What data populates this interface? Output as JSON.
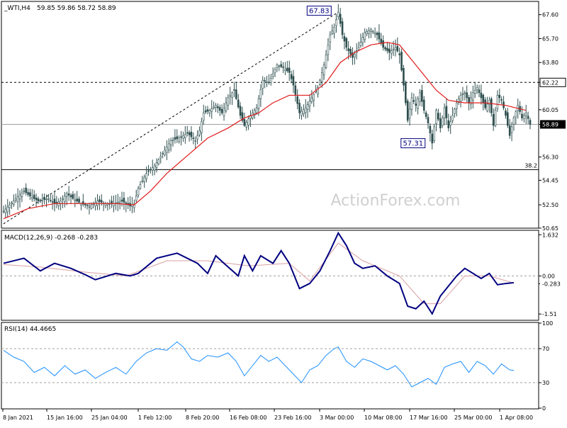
{
  "header": {
    "symbol": "_WTI,H4",
    "ohlc": "59.85 59.86 58.72 58.89"
  },
  "watermark": "ActionForex.com",
  "colors": {
    "candles": "#2f4f4f",
    "ma": "#e11b1b",
    "macd": "#000080",
    "signal": "#d9a0a0",
    "rsi": "#1e90ff",
    "levels": "#000000",
    "watermark": "#d0d0d0"
  },
  "chart_data": [
    {
      "type": "candlestick",
      "panel": "price",
      "title": "_WTI,H4 59.85 59.86 58.72 58.89",
      "ylim": [
        50.65,
        68.65
      ],
      "yticks": [
        67.6,
        65.7,
        63.8,
        62.22,
        60.05,
        58.89,
        56.3,
        54.45,
        52.5,
        50.65
      ],
      "xticks": [
        "8 Jan 2021",
        "15 Jan 16:00",
        "25 Jan 04:00",
        "1 Feb 12:00",
        "8 Feb 20:00",
        "16 Feb 08:00",
        "23 Feb 16:00",
        "3 Mar 00:00",
        "10 Mar 08:00",
        "17 Mar 16:00",
        "25 Mar 00:00",
        "1 Apr 08:00"
      ],
      "close_path": [
        [
          0,
          52.0
        ],
        [
          6,
          53.0
        ],
        [
          10,
          53.6
        ],
        [
          13,
          53.2
        ],
        [
          17,
          52.8
        ],
        [
          22,
          53.0
        ],
        [
          25,
          52.6
        ],
        [
          28,
          52.8
        ],
        [
          31,
          53.4
        ],
        [
          34,
          53.0
        ],
        [
          38,
          52.6
        ],
        [
          42,
          52.4
        ],
        [
          46,
          52.8
        ],
        [
          50,
          52.6
        ],
        [
          54,
          52.6
        ],
        [
          58,
          52.8
        ],
        [
          62,
          52.4
        ],
        [
          64,
          52.6
        ],
        [
          66,
          53.8
        ],
        [
          70,
          55.0
        ],
        [
          74,
          55.6
        ],
        [
          78,
          56.6
        ],
        [
          82,
          57.6
        ],
        [
          86,
          57.8
        ],
        [
          90,
          58.2
        ],
        [
          94,
          57.6
        ],
        [
          96,
          58.4
        ],
        [
          98,
          59.8
        ],
        [
          101,
          60.0
        ],
        [
          104,
          60.4
        ],
        [
          107,
          59.8
        ],
        [
          110,
          61.0
        ],
        [
          113,
          61.6
        ],
        [
          116,
          59.6
        ],
        [
          118,
          58.8
        ],
        [
          121,
          59.6
        ],
        [
          124,
          60.2
        ],
        [
          127,
          62.4
        ],
        [
          130,
          62.2
        ],
        [
          134,
          63.6
        ],
        [
          137,
          63.4
        ],
        [
          140,
          63.0
        ],
        [
          142,
          62.0
        ],
        [
          145,
          59.8
        ],
        [
          148,
          60.2
        ],
        [
          151,
          61.0
        ],
        [
          154,
          61.8
        ],
        [
          157,
          63.6
        ],
        [
          160,
          66.0
        ],
        [
          162,
          66.6
        ],
        [
          164,
          67.8
        ],
        [
          166,
          66.0
        ],
        [
          168,
          65.0
        ],
        [
          171,
          64.2
        ],
        [
          174,
          65.0
        ],
        [
          177,
          66.2
        ],
        [
          180,
          66.4
        ],
        [
          183,
          66.0
        ],
        [
          186,
          65.0
        ],
        [
          189,
          64.6
        ],
        [
          192,
          65.0
        ],
        [
          194,
          64.4
        ],
        [
          196,
          62.0
        ],
        [
          198,
          59.2
        ],
        [
          200,
          61.0
        ],
        [
          202,
          60.4
        ],
        [
          204,
          61.4
        ],
        [
          206,
          60.0
        ],
        [
          208,
          59.0
        ],
        [
          210,
          57.4
        ],
        [
          212,
          60.0
        ],
        [
          214,
          58.6
        ],
        [
          216,
          60.2
        ],
        [
          218,
          58.6
        ],
        [
          220,
          59.6
        ],
        [
          222,
          60.6
        ],
        [
          224,
          61.2
        ],
        [
          226,
          61.4
        ],
        [
          228,
          60.6
        ],
        [
          230,
          61.4
        ],
        [
          232,
          61.8
        ],
        [
          234,
          61.0
        ],
        [
          236,
          60.2
        ],
        [
          238,
          60.8
        ],
        [
          240,
          58.8
        ],
        [
          242,
          61.2
        ],
        [
          244,
          60.8
        ],
        [
          246,
          59.6
        ],
        [
          248,
          58.0
        ],
        [
          250,
          59.4
        ],
        [
          252,
          60.4
        ],
        [
          254,
          59.4
        ],
        [
          256,
          59.8
        ],
        [
          258,
          58.89
        ]
      ],
      "ma_path": [
        [
          0,
          51.4
        ],
        [
          12,
          52.2
        ],
        [
          25,
          52.6
        ],
        [
          40,
          52.6
        ],
        [
          55,
          52.6
        ],
        [
          64,
          52.5
        ],
        [
          72,
          53.6
        ],
        [
          80,
          55.0
        ],
        [
          90,
          56.4
        ],
        [
          100,
          57.8
        ],
        [
          110,
          58.6
        ],
        [
          118,
          59.4
        ],
        [
          125,
          59.8
        ],
        [
          132,
          60.6
        ],
        [
          140,
          61.2
        ],
        [
          150,
          61.2
        ],
        [
          158,
          62.2
        ],
        [
          165,
          63.8
        ],
        [
          172,
          64.6
        ],
        [
          180,
          65.2
        ],
        [
          188,
          65.4
        ],
        [
          194,
          65.2
        ],
        [
          200,
          64.0
        ],
        [
          206,
          62.8
        ],
        [
          212,
          61.6
        ],
        [
          218,
          60.8
        ],
        [
          226,
          60.6
        ],
        [
          236,
          60.6
        ],
        [
          246,
          60.4
        ],
        [
          256,
          60.0
        ]
      ],
      "levels": [
        {
          "kind": "dotted",
          "y": 62.22
        },
        {
          "kind": "solid",
          "y": 55.3,
          "label": "38.2"
        },
        {
          "kind": "solid",
          "y": 58.89
        }
      ],
      "trendline": [
        [
          0,
          51.0
        ],
        [
          164,
          67.8
        ]
      ],
      "annotations": [
        {
          "label": "67.83",
          "x": 164,
          "y": 67.83
        },
        {
          "label": "57.31",
          "x": 210,
          "y": 57.31
        }
      ]
    },
    {
      "type": "line",
      "panel": "macd",
      "title": "MACD(12,26,9) -0.268 -0.283",
      "ylim": [
        -1.73,
        1.78
      ],
      "yticks": [
        1.632,
        0.0,
        -1.51
      ],
      "series": [
        {
          "name": "MACD",
          "values": [
            [
              0,
              0.5
            ],
            [
              10,
              0.7
            ],
            [
              18,
              0.2
            ],
            [
              25,
              0.5
            ],
            [
              33,
              0.3
            ],
            [
              40,
              0.05
            ],
            [
              45,
              -0.15
            ],
            [
              55,
              0.1
            ],
            [
              62,
              0.0
            ],
            [
              66,
              0.1
            ],
            [
              75,
              0.7
            ],
            [
              85,
              0.9
            ],
            [
              95,
              0.5
            ],
            [
              100,
              0.1
            ],
            [
              104,
              0.8
            ],
            [
              108,
              0.5
            ],
            [
              115,
              0.0
            ],
            [
              118,
              0.8
            ],
            [
              122,
              0.2
            ],
            [
              126,
              0.8
            ],
            [
              132,
              0.5
            ],
            [
              136,
              1.0
            ],
            [
              140,
              0.5
            ],
            [
              145,
              -0.5
            ],
            [
              150,
              -0.3
            ],
            [
              155,
              0.2
            ],
            [
              160,
              1.0
            ],
            [
              164,
              1.7
            ],
            [
              168,
              1.2
            ],
            [
              172,
              0.5
            ],
            [
              176,
              0.3
            ],
            [
              182,
              0.4
            ],
            [
              188,
              0.0
            ],
            [
              194,
              -0.3
            ],
            [
              198,
              -1.2
            ],
            [
              202,
              -1.3
            ],
            [
              206,
              -1.0
            ],
            [
              210,
              -1.5
            ],
            [
              214,
              -0.8
            ],
            [
              218,
              -0.4
            ],
            [
              222,
              0.0
            ],
            [
              226,
              0.3
            ],
            [
              230,
              0.1
            ],
            [
              234,
              -0.1
            ],
            [
              238,
              0.1
            ],
            [
              242,
              -0.35
            ],
            [
              246,
              -0.3
            ],
            [
              250,
              -0.268
            ]
          ]
        },
        {
          "name": "Signal",
          "values": [
            [
              0,
              0.45
            ],
            [
              18,
              0.35
            ],
            [
              40,
              0.15
            ],
            [
              60,
              0.0
            ],
            [
              80,
              0.6
            ],
            [
              100,
              0.6
            ],
            [
              120,
              0.4
            ],
            [
              140,
              0.5
            ],
            [
              150,
              -0.2
            ],
            [
              164,
              1.3
            ],
            [
              176,
              0.6
            ],
            [
              194,
              0.0
            ],
            [
              206,
              -1.1
            ],
            [
              214,
              -1.1
            ],
            [
              226,
              0.0
            ],
            [
              238,
              0.0
            ],
            [
              250,
              -0.283
            ]
          ]
        }
      ]
    },
    {
      "type": "line",
      "panel": "rsi",
      "title": "RSI(14) 44.4665",
      "ylim": [
        0,
        100
      ],
      "yticks": [
        100,
        70,
        30,
        0
      ],
      "series": [
        {
          "name": "RSI(14)",
          "values": [
            [
              0,
              68
            ],
            [
              5,
              60
            ],
            [
              10,
              55
            ],
            [
              15,
              42
            ],
            [
              20,
              48
            ],
            [
              25,
              38
            ],
            [
              30,
              50
            ],
            [
              35,
              40
            ],
            [
              40,
              45
            ],
            [
              45,
              35
            ],
            [
              50,
              42
            ],
            [
              55,
              48
            ],
            [
              60,
              40
            ],
            [
              65,
              55
            ],
            [
              70,
              65
            ],
            [
              75,
              70
            ],
            [
              80,
              68
            ],
            [
              85,
              78
            ],
            [
              88,
              72
            ],
            [
              92,
              58
            ],
            [
              96,
              55
            ],
            [
              100,
              62
            ],
            [
              105,
              60
            ],
            [
              110,
              65
            ],
            [
              114,
              55
            ],
            [
              118,
              38
            ],
            [
              122,
              50
            ],
            [
              126,
              62
            ],
            [
              130,
              55
            ],
            [
              134,
              60
            ],
            [
              138,
              50
            ],
            [
              142,
              40
            ],
            [
              146,
              30
            ],
            [
              150,
              45
            ],
            [
              154,
              50
            ],
            [
              158,
              62
            ],
            [
              162,
              70
            ],
            [
              164,
              72
            ],
            [
              168,
              55
            ],
            [
              172,
              48
            ],
            [
              176,
              58
            ],
            [
              180,
              55
            ],
            [
              184,
              50
            ],
            [
              188,
              45
            ],
            [
              192,
              50
            ],
            [
              196,
              40
            ],
            [
              200,
              25
            ],
            [
              204,
              30
            ],
            [
              208,
              35
            ],
            [
              212,
              28
            ],
            [
              216,
              48
            ],
            [
              220,
              52
            ],
            [
              224,
              55
            ],
            [
              228,
              42
            ],
            [
              232,
              55
            ],
            [
              236,
              50
            ],
            [
              240,
              40
            ],
            [
              244,
              52
            ],
            [
              248,
              45
            ],
            [
              250,
              44.4665
            ]
          ]
        }
      ]
    }
  ]
}
